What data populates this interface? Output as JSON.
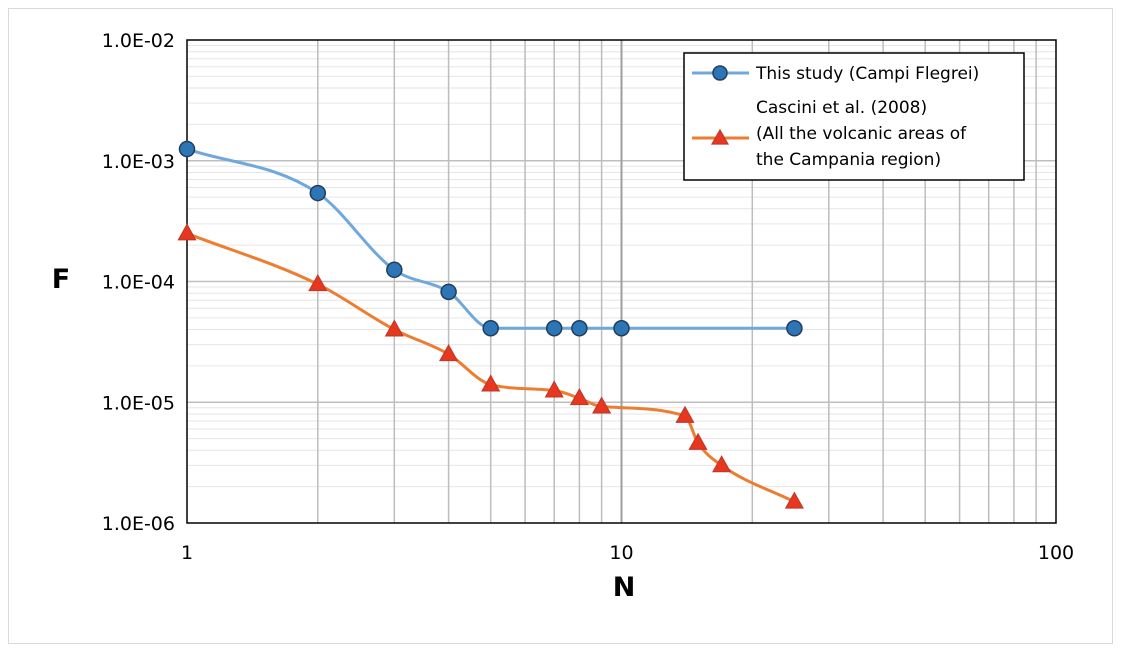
{
  "chart_data": {
    "type": "line",
    "xscale": "log",
    "yscale": "log",
    "xlabel": "N",
    "ylabel": "F",
    "xlim": [
      1,
      100
    ],
    "ylim": [
      1e-06,
      0.01
    ],
    "x_ticks": [
      {
        "value": 1,
        "label": "1"
      },
      {
        "value": 10,
        "label": "10"
      },
      {
        "value": 100,
        "label": "100"
      }
    ],
    "y_ticks": [
      {
        "value": 0.01,
        "label": "1.0E-02"
      },
      {
        "value": 0.001,
        "label": "1.0E-03"
      },
      {
        "value": 0.0001,
        "label": "1.0E-04"
      },
      {
        "value": 1e-05,
        "label": "1.0E-05"
      },
      {
        "value": 1e-06,
        "label": "1.0E-06"
      }
    ],
    "grid": true,
    "legend_position": "top-right",
    "series": [
      {
        "name": "This study (Campi Flegrei)",
        "marker": "circle",
        "line_color": "#6fa8dc",
        "marker_color": "#2e75b6",
        "x": [
          1,
          2,
          3,
          4,
          5,
          7,
          8,
          10,
          25
        ],
        "y": [
          0.00125,
          0.00054,
          0.000125,
          8.2e-05,
          4.1e-05,
          4.1e-05,
          4.1e-05,
          4.1e-05,
          4.1e-05
        ]
      },
      {
        "name_lines": [
          "Cascini et al. (2008)",
          "(All the volcanic areas of",
          "the Campania region)"
        ],
        "marker": "triangle",
        "line_color": "#ed7d31",
        "marker_color": "#e8371f",
        "x": [
          1,
          2,
          3,
          4,
          5,
          7,
          8,
          9,
          14,
          15,
          17,
          25
        ],
        "y": [
          0.00025,
          9.5e-05,
          4e-05,
          2.5e-05,
          1.4e-05,
          1.25e-05,
          1.08e-05,
          9.2e-06,
          7.7e-06,
          4.6e-06,
          3e-06,
          1.5e-06
        ]
      }
    ]
  }
}
